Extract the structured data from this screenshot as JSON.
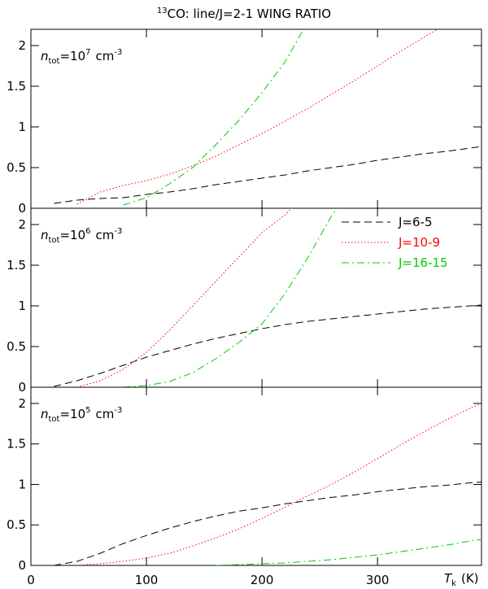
{
  "chart_data": [
    {
      "type": "line",
      "title": {
        "sup": "13",
        "main": "CO: line/J=2-1 WING RATIO"
      },
      "annotation": {
        "n": "n",
        "sub": "tot",
        "eq": "=10",
        "exp": "7",
        "unit": "cm",
        "unit_exp": "-3"
      },
      "x": [
        0,
        20,
        40,
        60,
        80,
        100,
        120,
        140,
        160,
        180,
        200,
        220,
        240,
        260,
        280,
        300,
        320,
        340,
        360,
        380,
        390
      ],
      "xlim": [
        0,
        390
      ],
      "ylim": [
        0,
        2.2
      ],
      "yticks": [
        0,
        0.5,
        1,
        1.5,
        2
      ],
      "series": [
        {
          "name": "J=6-5",
          "color": "#000000",
          "dash": "dashed",
          "values": [
            null,
            0.06,
            0.1,
            0.12,
            0.13,
            0.17,
            0.2,
            0.24,
            0.29,
            0.33,
            0.37,
            0.41,
            0.46,
            0.5,
            0.54,
            0.59,
            0.63,
            0.67,
            0.7,
            0.74,
            0.76
          ]
        },
        {
          "name": "J=10-9",
          "color": "#ff0000",
          "dash": "dotted",
          "values": [
            null,
            null,
            0.05,
            0.2,
            0.28,
            0.34,
            0.42,
            0.52,
            0.64,
            0.78,
            0.92,
            1.07,
            1.23,
            1.4,
            1.57,
            1.75,
            1.93,
            2.1,
            2.27,
            null,
            null
          ]
        },
        {
          "name": "J=16-15",
          "color": "#00cc00",
          "dash": "dashdot",
          "values": [
            null,
            null,
            null,
            null,
            0.04,
            0.13,
            0.3,
            0.5,
            0.78,
            1.08,
            1.42,
            1.8,
            2.3,
            null,
            null,
            null,
            null,
            null,
            null,
            null,
            null
          ]
        }
      ]
    },
    {
      "type": "line",
      "annotation": {
        "n": "n",
        "sub": "tot",
        "eq": "=10",
        "exp": "6",
        "unit": "cm",
        "unit_exp": "-3"
      },
      "legend": true,
      "legend_corner": "upper right",
      "x": [
        0,
        20,
        40,
        60,
        80,
        100,
        120,
        140,
        160,
        180,
        200,
        220,
        240,
        260,
        280,
        300,
        320,
        340,
        360,
        380,
        390
      ],
      "xlim": [
        0,
        390
      ],
      "ylim": [
        0,
        2.2
      ],
      "yticks": [
        0,
        0.5,
        1,
        1.5,
        2
      ],
      "series": [
        {
          "name": "J=6-5",
          "color": "#000000",
          "dash": "dashed",
          "values": [
            null,
            0.01,
            0.08,
            0.17,
            0.27,
            0.37,
            0.45,
            0.53,
            0.6,
            0.66,
            0.72,
            0.77,
            0.81,
            0.84,
            0.87,
            0.9,
            0.93,
            0.96,
            0.98,
            1.0,
            1.01
          ]
        },
        {
          "name": "J=10-9",
          "color": "#ff0000",
          "dash": "dotted",
          "values": [
            null,
            null,
            0,
            0.08,
            0.22,
            0.43,
            0.7,
            1.0,
            1.3,
            1.6,
            1.9,
            2.12,
            2.4,
            null,
            null,
            null,
            null,
            null,
            null,
            null,
            null
          ]
        },
        {
          "name": "J=16-15",
          "color": "#00cc00",
          "dash": "dashdot",
          "values": [
            null,
            null,
            null,
            null,
            0,
            0.02,
            0.07,
            0.18,
            0.35,
            0.55,
            0.78,
            1.15,
            1.6,
            2.1,
            2.5,
            null,
            null,
            null,
            null,
            null,
            null
          ]
        }
      ]
    },
    {
      "type": "line",
      "annotation": {
        "n": "n",
        "sub": "tot",
        "eq": "=10",
        "exp": "5",
        "unit": "cm",
        "unit_exp": "-3"
      },
      "xlabel": {
        "base": "T",
        "sub": "k",
        "unit": "(K)"
      },
      "x": [
        0,
        20,
        40,
        60,
        80,
        100,
        120,
        140,
        160,
        180,
        200,
        220,
        240,
        260,
        280,
        300,
        320,
        340,
        360,
        380,
        390
      ],
      "xlim": [
        0,
        390
      ],
      "xticks": [
        0,
        100,
        200,
        300
      ],
      "ylim": [
        0,
        2.2
      ],
      "yticks": [
        0,
        0.5,
        1,
        1.5,
        2
      ],
      "series": [
        {
          "name": "J=6-5",
          "color": "#000000",
          "dash": "dashed",
          "values": [
            null,
            0,
            0.05,
            0.15,
            0.27,
            0.37,
            0.46,
            0.54,
            0.61,
            0.67,
            0.71,
            0.76,
            0.8,
            0.84,
            0.87,
            0.91,
            0.94,
            0.97,
            0.99,
            1.02,
            1.03
          ]
        },
        {
          "name": "J=10-9",
          "color": "#ff0000",
          "dash": "dotted",
          "values": [
            null,
            null,
            0,
            0.02,
            0.05,
            0.09,
            0.15,
            0.24,
            0.34,
            0.45,
            0.58,
            0.72,
            0.86,
            1.0,
            1.15,
            1.32,
            1.49,
            1.65,
            1.8,
            1.94,
            2.0
          ]
        },
        {
          "name": "J=16-15",
          "color": "#00cc00",
          "dash": "dashdot",
          "values": [
            null,
            null,
            null,
            null,
            null,
            null,
            null,
            null,
            0,
            0.01,
            0.02,
            0.03,
            0.05,
            0.07,
            0.1,
            0.13,
            0.17,
            0.21,
            0.25,
            0.3,
            0.32
          ]
        }
      ]
    }
  ]
}
